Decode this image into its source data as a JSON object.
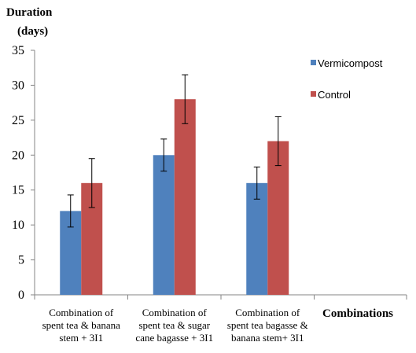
{
  "chart_data": {
    "type": "bar",
    "ylabel": [
      "Duration",
      "(days)"
    ],
    "xlabel": "Combinations",
    "ylim": [
      0,
      35
    ],
    "yticks": [
      0,
      5,
      10,
      15,
      20,
      25,
      30,
      35
    ],
    "categories": [
      [
        "Combination of",
        "spent tea & banana",
        "stem + 3I1"
      ],
      [
        "Combination of",
        "spent tea & sugar",
        "cane bagasse + 3I1"
      ],
      [
        "Combination of",
        "spent tea bagasse &",
        "banana stem+ 3I1"
      ]
    ],
    "series": [
      {
        "name": "Vermicompost",
        "color": "#4f81bd",
        "values": [
          12,
          20,
          16
        ],
        "errors": [
          2.3,
          2.3,
          2.3
        ]
      },
      {
        "name": "Control",
        "color": "#c0504d",
        "values": [
          16,
          28,
          22
        ],
        "errors": [
          3.5,
          3.5,
          3.5
        ]
      }
    ],
    "grid": false,
    "legend_position": "top-right"
  }
}
